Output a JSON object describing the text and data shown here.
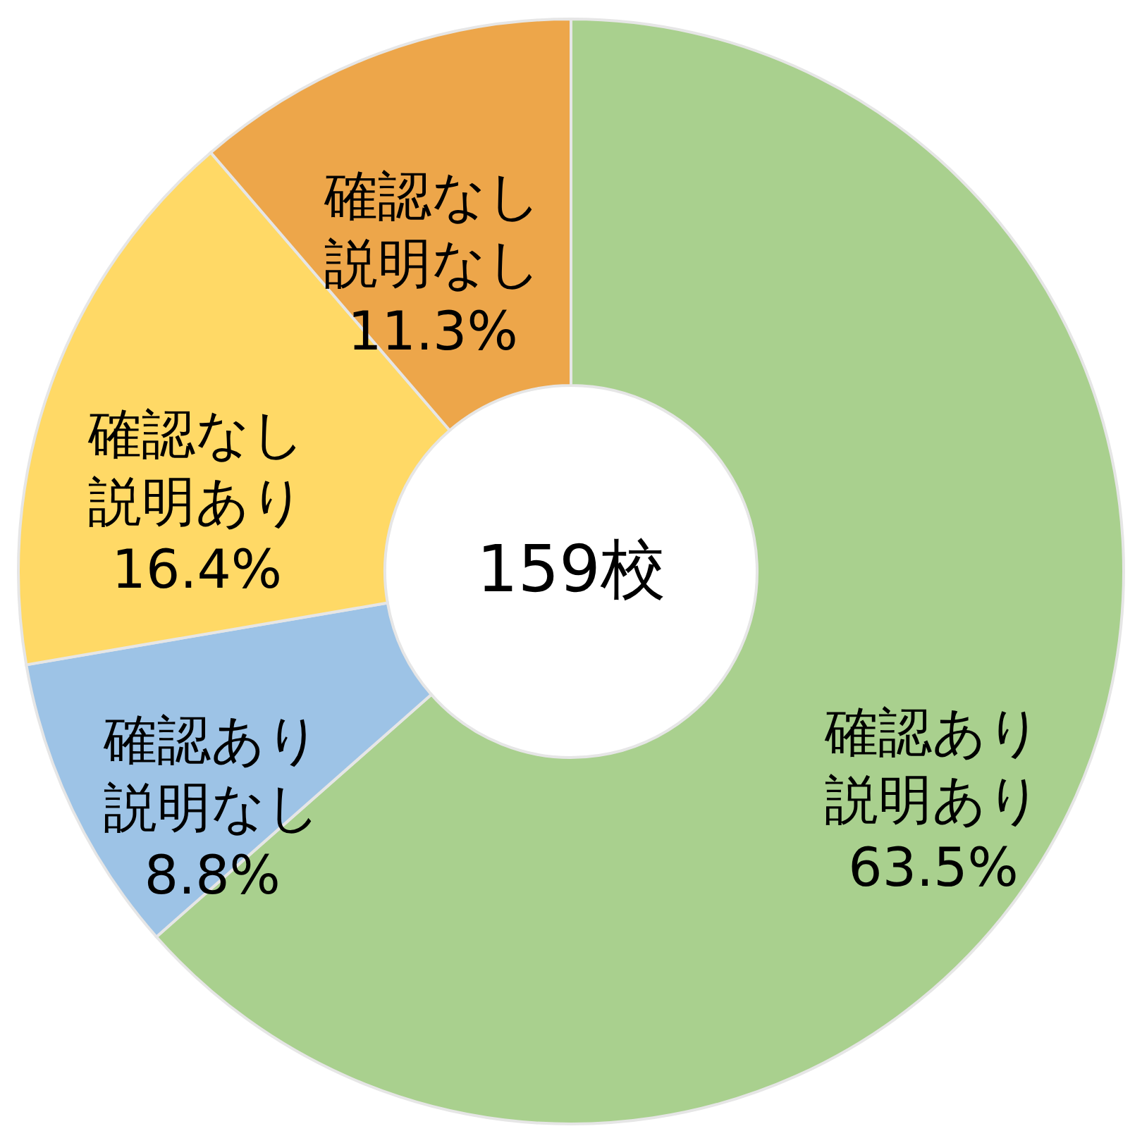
{
  "chart_data": {
    "type": "donut",
    "categories": [
      "確認あり説明あり",
      "確認あり説明なし",
      "確認なし説明あり",
      "確認なし説明なし"
    ],
    "values": [
      63.5,
      8.8,
      16.4,
      11.3
    ],
    "colors": [
      "#a9d08e",
      "#9dc3e6",
      "#ffd966",
      "#eda64a"
    ],
    "value_labels": [
      "63.5%",
      "8.8%",
      "16.4%",
      "11.3%"
    ],
    "annotations": [
      "159校"
    ]
  }
}
